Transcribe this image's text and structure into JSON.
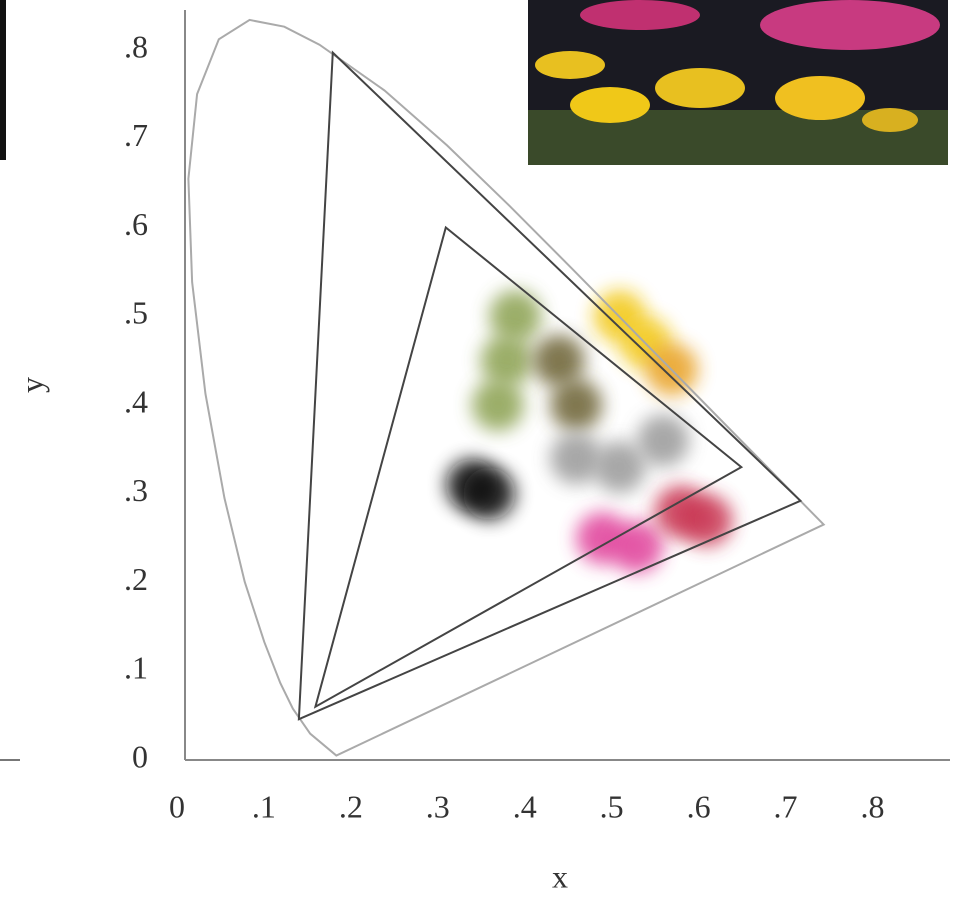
{
  "chart_data": {
    "type": "scatter",
    "xlabel": "x",
    "ylabel": "y",
    "xlim": [
      0,
      0.88
    ],
    "ylim": [
      0,
      0.845
    ],
    "xticks": [
      0,
      {
        "value": 0.1,
        "label": ".1"
      },
      {
        "value": 0.2,
        "label": ".2"
      },
      {
        "value": 0.3,
        "label": ".3"
      },
      {
        "value": 0.4,
        "label": ".4"
      },
      {
        "value": 0.5,
        "label": ".5"
      },
      {
        "value": 0.6,
        "label": ".6"
      },
      {
        "value": 0.7,
        "label": ".7"
      },
      {
        "value": 0.8,
        "label": ".8"
      }
    ],
    "yticks": [
      0,
      {
        "value": 0.1,
        "label": ".1"
      },
      {
        "value": 0.2,
        "label": ".2"
      },
      {
        "value": 0.3,
        "label": ".3"
      },
      {
        "value": 0.4,
        "label": ".4"
      },
      {
        "value": 0.5,
        "label": ".5"
      },
      {
        "value": 0.6,
        "label": ".6"
      },
      {
        "value": 0.7,
        "label": ".7"
      },
      {
        "value": 0.8,
        "label": ".8"
      }
    ],
    "lines": [
      {
        "color": "#aaaaaa",
        "closed": true,
        "x": [
          0.1741,
          0.144,
          0.1241,
          0.1096,
          0.0913,
          0.0687,
          0.0454,
          0.0235,
          0.0082,
          0.0039,
          0.0139,
          0.0389,
          0.0743,
          0.1142,
          0.1547,
          0.2296,
          0.3016,
          0.3731,
          0.4441,
          0.5125,
          0.5752,
          0.627,
          0.6915,
          0.719,
          0.7347
        ],
        "y": [
          0.005,
          0.0297,
          0.0578,
          0.0868,
          0.1327,
          0.2007,
          0.295,
          0.4127,
          0.5384,
          0.6548,
          0.7502,
          0.812,
          0.8338,
          0.8262,
          0.8059,
          0.7543,
          0.6923,
          0.6245,
          0.5547,
          0.4866,
          0.4242,
          0.3725,
          0.3083,
          0.2809,
          0.2653
        ]
      },
      {
        "color": "#444444",
        "closed": true,
        "x": [
          0.708,
          0.17,
          0.131
        ],
        "y": [
          0.292,
          0.797,
          0.046
        ]
      },
      {
        "color": "#444444",
        "closed": true,
        "x": [
          0.64,
          0.3,
          0.15
        ],
        "y": [
          0.33,
          0.6,
          0.06
        ]
      }
    ],
    "series": [
      {
        "color": "#8aa050",
        "x": [
          0.38,
          0.37,
          0.36
        ],
        "y": [
          0.5,
          0.45,
          0.4
        ]
      },
      {
        "color": "#6b6030",
        "x": [
          0.43,
          0.45
        ],
        "y": [
          0.45,
          0.4
        ]
      },
      {
        "color": "#f2c818",
        "x": [
          0.5,
          0.53
        ],
        "y": [
          0.5,
          0.47
        ]
      },
      {
        "color": "#e8a020",
        "x": [
          0.56
        ],
        "y": [
          0.44
        ]
      },
      {
        "color": "#999999",
        "x": [
          0.45,
          0.5,
          0.55
        ],
        "y": [
          0.34,
          0.33,
          0.36
        ]
      },
      {
        "color": "#111111",
        "x": [
          0.33,
          0.35
        ],
        "y": [
          0.31,
          0.3
        ]
      },
      {
        "color": "#e0409a",
        "x": [
          0.48,
          0.52
        ],
        "y": [
          0.25,
          0.24
        ]
      },
      {
        "color": "#c83050",
        "x": [
          0.57,
          0.6
        ],
        "y": [
          0.28,
          0.27
        ]
      }
    ]
  }
}
